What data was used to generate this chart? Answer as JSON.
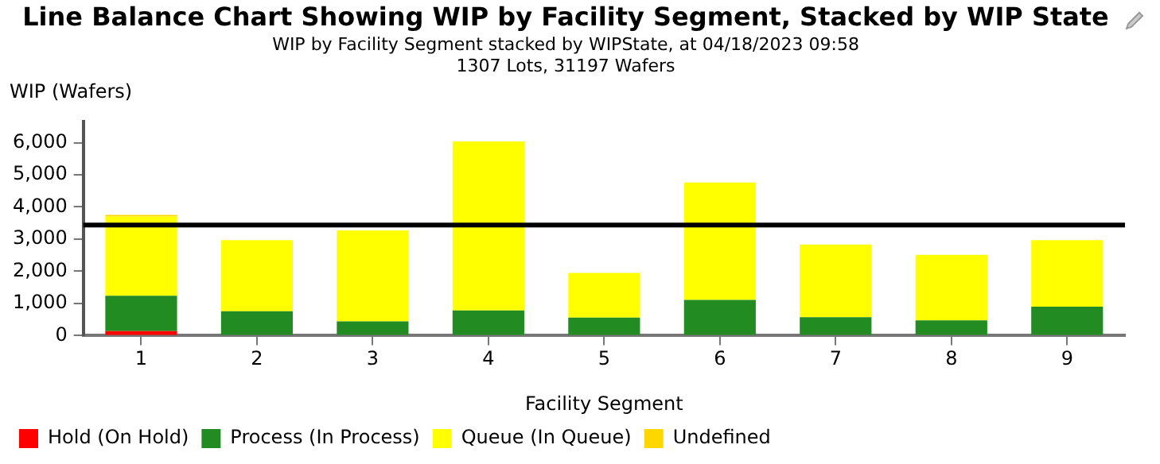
{
  "chart_data": {
    "type": "bar",
    "title": "Line Balance Chart Showing WIP by Facility Segment, Stacked by WIP State",
    "subtitle": "WIP by Facility Segment stacked by WIPState, at 04/18/2023 09:58\n1307 Lots, 31197 Wafers",
    "xlabel": "Facility Segment",
    "ylabel": "WIP (Wafers)",
    "categories": [
      "1",
      "2",
      "3",
      "4",
      "5",
      "6",
      "7",
      "8",
      "9"
    ],
    "stacked": true,
    "series": [
      {
        "name": "Hold (On Hold)",
        "color": "#ff0000",
        "values": [
          140,
          0,
          0,
          0,
          0,
          0,
          0,
          0,
          0
        ]
      },
      {
        "name": "Process (In Process)",
        "color": "#228b22",
        "values": [
          1100,
          760,
          440,
          780,
          560,
          1110,
          570,
          470,
          900
        ]
      },
      {
        "name": "Queue (In Queue)",
        "color": "#ffff00",
        "values": [
          2460,
          2210,
          2830,
          5260,
          1390,
          3650,
          2260,
          2040,
          2070
        ]
      },
      {
        "name": "Undefined",
        "color": "#ffd700",
        "values": [
          50,
          0,
          0,
          0,
          0,
          0,
          0,
          0,
          0
        ]
      }
    ],
    "ylim": [
      0,
      6650
    ],
    "yticks": [
      0,
      {
        "value": 1000,
        "label": "1,000"
      },
      {
        "value": 2000,
        "label": "2,000"
      },
      {
        "value": 3000,
        "label": "3,000"
      },
      {
        "value": 4000,
        "label": "4,000"
      },
      {
        "value": 5000,
        "label": "5,000"
      },
      {
        "value": 6000,
        "label": "6,000"
      }
    ],
    "ref_lines": [
      {
        "axis": "y",
        "value": 3440,
        "color": "#000000"
      }
    ],
    "grid": false,
    "legend": "bottom"
  }
}
